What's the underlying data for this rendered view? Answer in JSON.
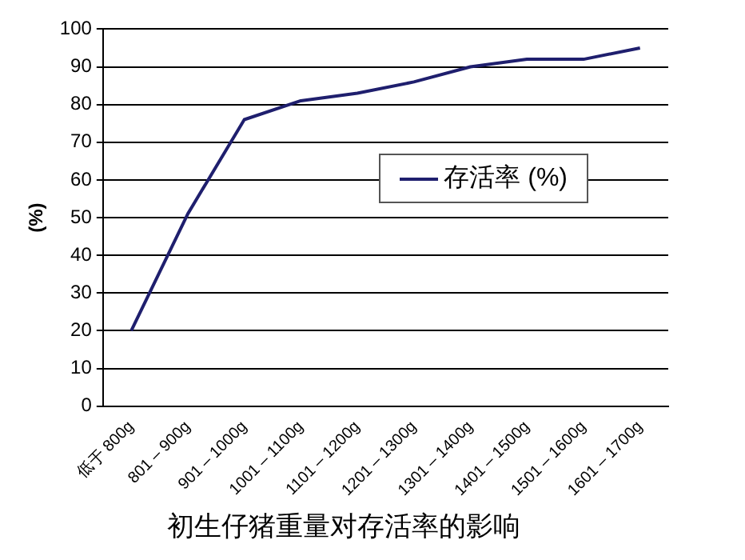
{
  "chart_data": {
    "type": "line",
    "title": "初生仔猪重量对存活率的影响",
    "ylabel": "(%)",
    "categories": [
      "低于 800g",
      "801 – 900g",
      "901 – 1000g",
      "1001 – 1100g",
      "1101 – 1200g",
      "1201 – 1300g",
      "1301 – 1400g",
      "1401 – 1500g",
      "1501 – 1600g",
      "1601 – 1700g"
    ],
    "series": [
      {
        "name": "存活率 (%)",
        "color": "#1f1f6e",
        "values": [
          20,
          51,
          76,
          81,
          83,
          86,
          90,
          92,
          92,
          95
        ]
      }
    ],
    "ylim": [
      0,
      100
    ],
    "yticks": [
      0,
      10,
      20,
      30,
      40,
      50,
      60,
      70,
      80,
      90,
      100
    ],
    "grid": "y",
    "legend": "right",
    "marker": "none"
  }
}
